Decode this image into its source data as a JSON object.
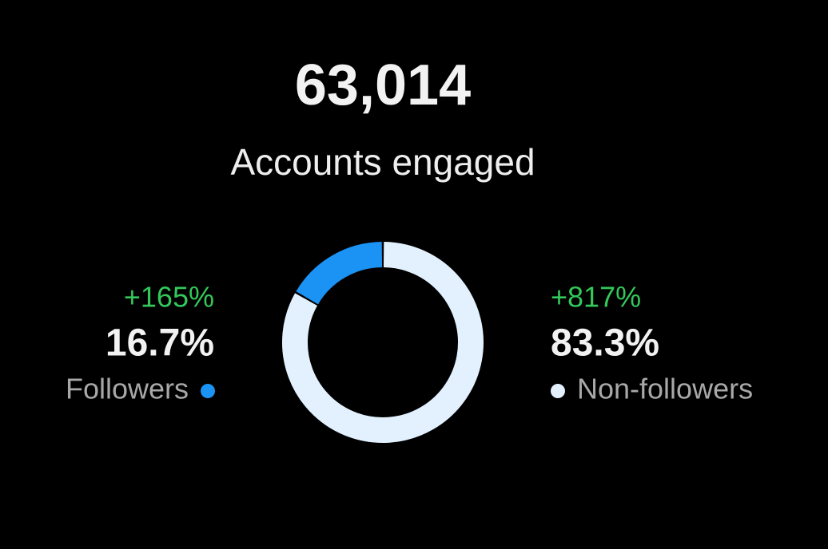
{
  "chart_data": {
    "type": "donut",
    "title": "63,014",
    "subtitle": "Accounts engaged",
    "categories": [
      "Followers",
      "Non-followers"
    ],
    "values": [
      16.7,
      83.3
    ],
    "value_labels": [
      "16.7%",
      "83.3%"
    ],
    "change_labels": [
      "+165%",
      "+817%"
    ],
    "colors": [
      "#1a93f5",
      "#e3f1ff"
    ]
  }
}
